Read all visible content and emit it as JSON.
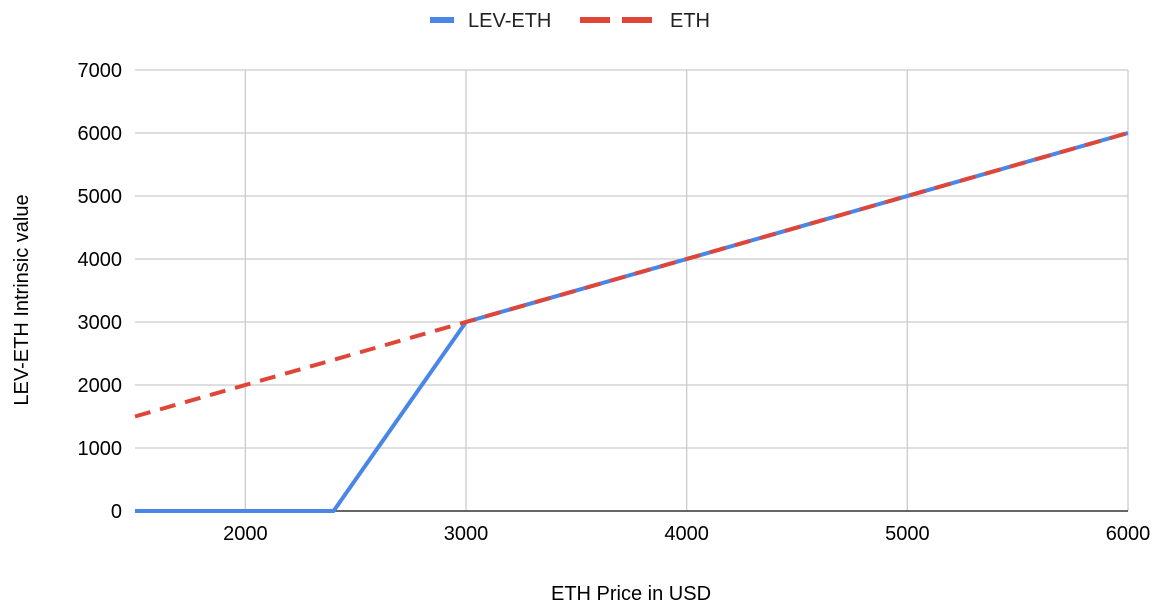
{
  "chart_data": {
    "type": "line",
    "title": "",
    "xlabel": "ETH Price in USD",
    "ylabel": "LEV-ETH Intrinsic value",
    "xlim": [
      1500,
      6000
    ],
    "ylim": [
      0,
      7000
    ],
    "x_ticks": [
      2000,
      3000,
      4000,
      5000,
      6000
    ],
    "y_ticks": [
      0,
      1000,
      2000,
      3000,
      4000,
      5000,
      6000,
      7000
    ],
    "grid": true,
    "legend_position": "top",
    "series": [
      {
        "name": "LEV-ETH",
        "color": "#4a86e8",
        "dash": "solid",
        "points": [
          [
            1500,
            0
          ],
          [
            2400,
            0
          ],
          [
            3000,
            3000
          ],
          [
            6000,
            6000
          ]
        ]
      },
      {
        "name": "ETH",
        "color": "#df4638",
        "dash": "dashed",
        "points": [
          [
            1500,
            1500
          ],
          [
            6000,
            6000
          ]
        ]
      }
    ]
  }
}
